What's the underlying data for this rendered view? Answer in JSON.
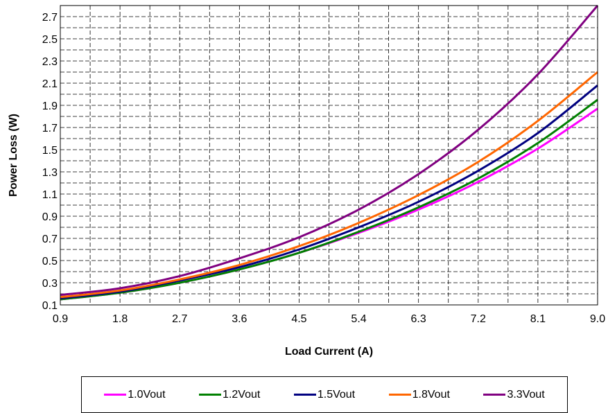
{
  "chart_data": {
    "type": "line",
    "title": "",
    "xlabel": "Load Current (A)",
    "ylabel": "Power Loss (W)",
    "xlim": [
      0.9,
      9.0
    ],
    "ylim": [
      0.1,
      2.8
    ],
    "xticks": [
      "0.9",
      "1.8",
      "2.7",
      "3.6",
      "4.5",
      "5.4",
      "6.3",
      "7.2",
      "8.1",
      "9.0"
    ],
    "yticks": [
      "0.1",
      "0.3",
      "0.5",
      "0.7",
      "0.9",
      "1.1",
      "1.3",
      "1.5",
      "1.7",
      "1.9",
      "2.1",
      "2.3",
      "2.5",
      "2.7"
    ],
    "grid": true,
    "legend_position": "bottom",
    "x": [
      0.9,
      1.8,
      2.7,
      3.6,
      4.5,
      5.4,
      6.3,
      7.2,
      8.1,
      9.0
    ],
    "series": [
      {
        "name": "1.0Vout",
        "color": "#FF00FF",
        "values": [
          0.15,
          0.21,
          0.3,
          0.42,
          0.57,
          0.75,
          0.96,
          1.21,
          1.51,
          1.87
        ]
      },
      {
        "name": "1.2Vout",
        "color": "#008000",
        "values": [
          0.15,
          0.21,
          0.3,
          0.42,
          0.57,
          0.76,
          0.98,
          1.24,
          1.56,
          1.95
        ]
      },
      {
        "name": "1.5Vout",
        "color": "#000080",
        "values": [
          0.16,
          0.22,
          0.32,
          0.44,
          0.6,
          0.8,
          1.03,
          1.31,
          1.65,
          2.08
        ]
      },
      {
        "name": "1.8Vout",
        "color": "#FF6600",
        "values": [
          0.17,
          0.23,
          0.33,
          0.46,
          0.63,
          0.84,
          1.09,
          1.39,
          1.76,
          2.2
        ]
      },
      {
        "name": "3.3Vout",
        "color": "#800080",
        "values": [
          0.19,
          0.25,
          0.36,
          0.52,
          0.71,
          0.96,
          1.28,
          1.68,
          2.18,
          2.8
        ]
      }
    ]
  }
}
